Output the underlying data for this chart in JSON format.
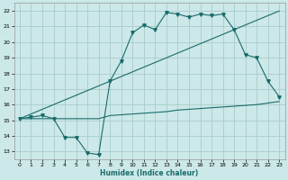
{
  "background_color": "#cce8e8",
  "grid_color": "#aacccc",
  "line_color": "#1a6b6b",
  "xlabel": "Humidex (Indice chaleur)",
  "xlim": [
    -0.5,
    23.5
  ],
  "ylim": [
    12.5,
    22.5
  ],
  "xticks": [
    0,
    1,
    2,
    3,
    4,
    5,
    6,
    7,
    8,
    9,
    10,
    11,
    12,
    13,
    14,
    15,
    16,
    17,
    18,
    19,
    20,
    21,
    22,
    23
  ],
  "yticks": [
    13,
    14,
    15,
    16,
    17,
    18,
    19,
    20,
    21,
    22
  ],
  "series_flat_x": [
    0,
    1,
    2,
    3,
    4,
    5,
    6,
    7,
    8,
    9,
    10,
    11,
    12,
    13,
    14,
    15,
    16,
    17,
    18,
    19,
    20,
    21,
    22,
    23
  ],
  "series_flat_y": [
    15.1,
    15.1,
    15.1,
    15.1,
    15.1,
    15.1,
    15.1,
    15.1,
    15.3,
    15.35,
    15.4,
    15.45,
    15.5,
    15.55,
    15.65,
    15.7,
    15.75,
    15.8,
    15.85,
    15.9,
    15.95,
    16.0,
    16.1,
    16.2
  ],
  "series_diag_x": [
    0,
    1,
    2,
    3,
    4,
    5,
    6,
    7,
    8,
    9,
    10,
    11,
    12,
    13,
    14,
    15,
    16,
    17,
    18,
    19,
    20,
    21,
    22,
    23
  ],
  "series_diag_y": [
    15.1,
    15.4,
    15.7,
    16.0,
    16.3,
    16.6,
    16.9,
    17.2,
    17.5,
    17.8,
    18.1,
    18.4,
    18.7,
    19.0,
    19.3,
    19.6,
    19.9,
    20.2,
    20.5,
    20.8,
    21.1,
    21.4,
    21.7,
    22.0
  ],
  "series_jagged_x": [
    0,
    1,
    2,
    3,
    4,
    5,
    6,
    7,
    8,
    9,
    10,
    11,
    12,
    13,
    14,
    15,
    16,
    17,
    18,
    19,
    20,
    21,
    22,
    23
  ],
  "series_jagged_y": [
    15.1,
    15.2,
    15.3,
    15.1,
    13.9,
    13.9,
    12.9,
    12.8,
    17.5,
    18.8,
    20.6,
    21.1,
    20.8,
    21.9,
    21.8,
    21.6,
    21.8,
    21.7,
    21.8,
    20.8,
    19.2,
    19.0,
    17.5,
    16.5
  ]
}
